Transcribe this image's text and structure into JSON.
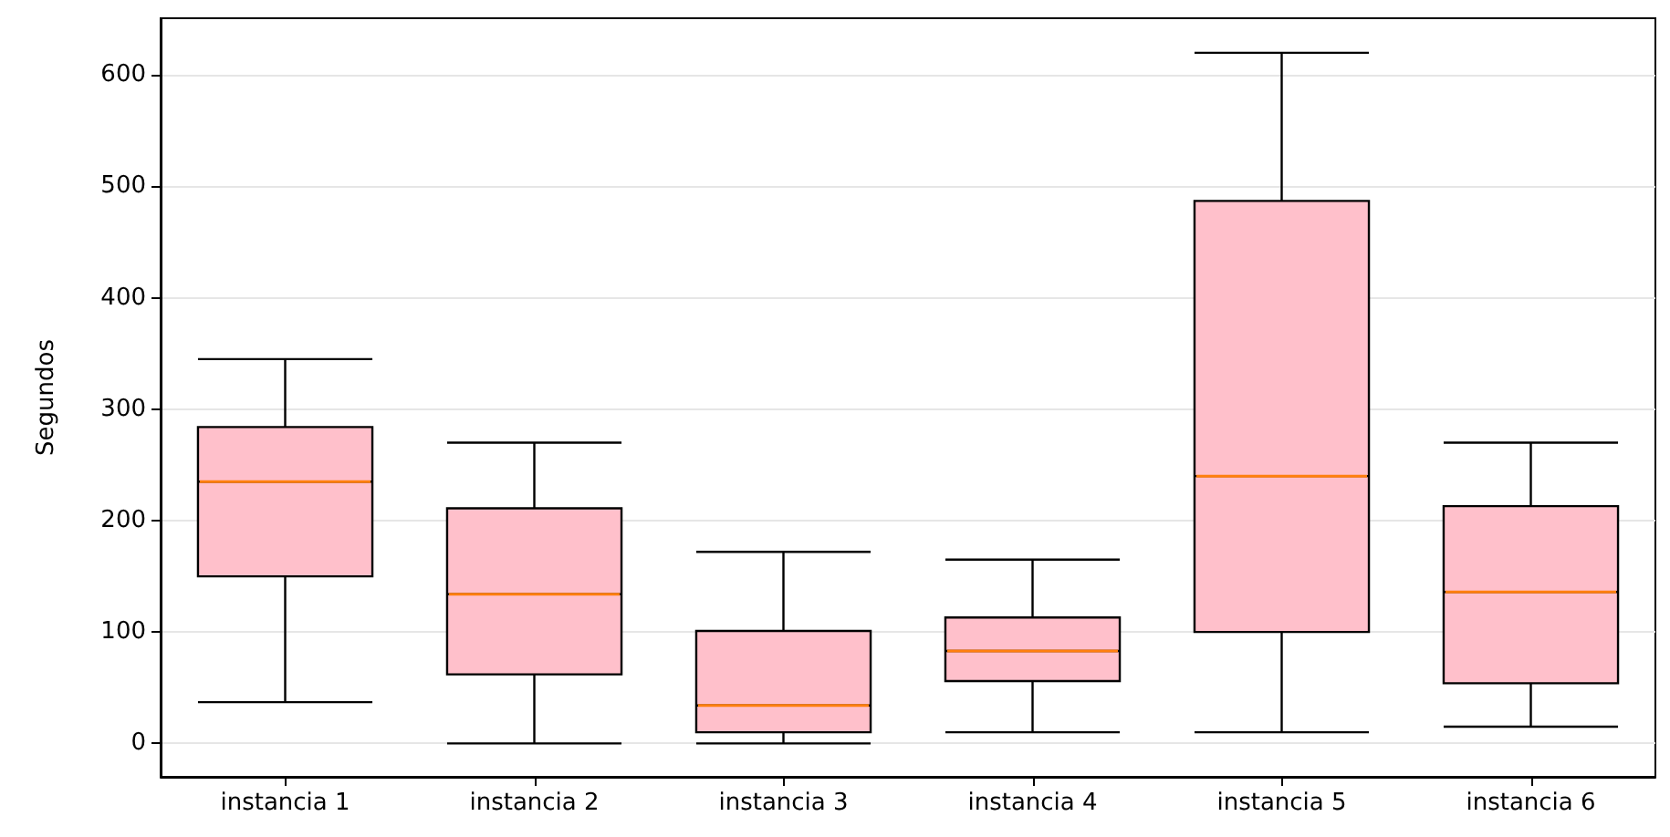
{
  "chart_data": {
    "type": "box",
    "ylabel": "Segundos",
    "categories": [
      "instancia 1",
      "instancia 2",
      "instancia 3",
      "instancia 4",
      "instancia 5",
      "instancia 6"
    ],
    "color": "#ffc0cb",
    "boxes": [
      {
        "low": 37,
        "q1": 150,
        "median": 235,
        "q3": 284,
        "high": 345
      },
      {
        "low": 0,
        "q1": 62,
        "median": 134,
        "q3": 211,
        "high": 270
      },
      {
        "low": 0,
        "q1": 10,
        "median": 34,
        "q3": 101,
        "high": 172
      },
      {
        "low": 10,
        "q1": 56,
        "median": 83,
        "q3": 113,
        "high": 165
      },
      {
        "low": 10,
        "q1": 100,
        "median": 240,
        "q3": 487,
        "high": 620
      },
      {
        "low": 15,
        "q1": 54,
        "median": 136,
        "q3": 213,
        "high": 270
      }
    ],
    "ylim": [
      -30,
      651
    ],
    "yticks": [
      0,
      100,
      200,
      300,
      400,
      500,
      600
    ],
    "grid": "y",
    "legend": false
  }
}
